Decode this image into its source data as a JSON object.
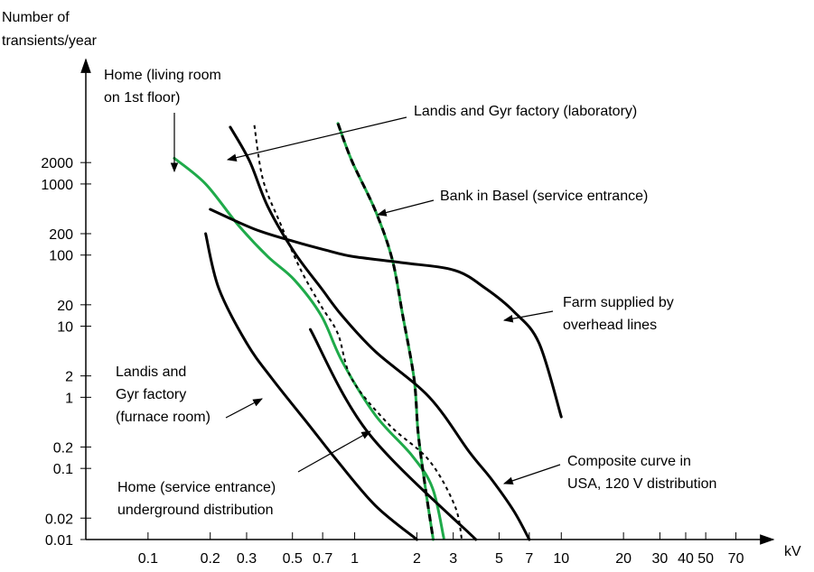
{
  "chart_data": {
    "type": "line",
    "y_label": [
      "Number of",
      "transients/year"
    ],
    "x_label": "kV",
    "xscale": "log",
    "yscale": "log",
    "xlim": [
      0.05,
      100
    ],
    "ylim": [
      0.01,
      50000
    ],
    "xticks": [
      0.1,
      0.2,
      0.3,
      0.5,
      0.7,
      1,
      2,
      3,
      5,
      7,
      10,
      20,
      30,
      40,
      50,
      70
    ],
    "yticks": [
      0.01,
      0.02,
      0.1,
      0.2,
      1,
      2,
      10,
      20,
      100,
      200,
      1000,
      2000
    ],
    "grid": false,
    "series": [
      {
        "color": "#1faa4a",
        "style": "solid",
        "x": [
          0.134,
          0.19,
          0.273,
          0.38,
          0.51,
          0.69,
          0.87,
          1.26,
          1.9,
          2.38,
          2.7
        ],
        "values": [
          2300,
          1000,
          265,
          95,
          45,
          14,
          3.2,
          0.56,
          0.15,
          0.053,
          0.0105
        ]
      },
      {
        "color": "#1faa4a",
        "style": "dashed",
        "x": [
          0.83,
          0.97,
          1.26,
          1.52,
          1.71,
          1.94,
          2.03,
          2.2,
          2.4
        ],
        "values": [
          7100,
          2100,
          420,
          87,
          14,
          1.8,
          0.31,
          0.053,
          0.01
        ]
      },
      {
        "color": "#000000",
        "style": "dotted",
        "x": [
          0.327,
          0.36,
          0.44,
          0.55,
          0.69,
          0.83,
          0.97,
          1.47,
          2.29,
          3.05,
          3.3
        ],
        "values": [
          6700,
          1150,
          265,
          61,
          19,
          7.8,
          1.8,
          0.41,
          0.13,
          0.03,
          0.01
        ]
      },
      {
        "color": "#000000",
        "style": "solid",
        "x": [
          0.25,
          0.31,
          0.38,
          0.51,
          0.69,
          0.87,
          1.26,
          2.3,
          3.59,
          4.6,
          5.9,
          7
        ],
        "values": [
          6300,
          2100,
          480,
          110,
          34,
          14,
          4.4,
          1,
          0.17,
          0.07,
          0.025,
          0.01
        ]
      },
      {
        "color": "#000000",
        "style": "solid",
        "x": [
          0.2,
          0.33,
          0.51,
          0.72,
          0.97,
          1.71,
          3.05,
          4.3,
          5.9,
          7.8,
          10
        ],
        "values": [
          440,
          230,
          155,
          118,
          96,
          78,
          61,
          34,
          16,
          5.8,
          0.53
        ]
      },
      {
        "color": "#000000",
        "style": "solid",
        "x": [
          0.19,
          0.22,
          0.3,
          0.4,
          0.6,
          0.82,
          1.26,
          2
        ],
        "values": [
          200,
          34,
          5.8,
          1.8,
          0.41,
          0.13,
          0.03,
          0.01
        ]
      },
      {
        "color": "#000000",
        "style": "solid",
        "x": [
          0.61,
          1.17,
          3.86
        ],
        "values": [
          9,
          0.31,
          0.01
        ]
      }
    ],
    "annotations": [
      {
        "text": [
          "Home (living room",
          "on 1st floor)"
        ]
      },
      {
        "text": [
          "Landis and Gyr factory (laboratory)"
        ]
      },
      {
        "text": [
          "Bank in Basel (service entrance)"
        ]
      },
      {
        "text": [
          "Farm supplied by",
          "overhead lines"
        ]
      },
      {
        "text": [
          "Landis and",
          "Gyr factory",
          "(furnace room)"
        ]
      },
      {
        "text": [
          "Home (service entrance)",
          "underground distribution"
        ]
      },
      {
        "text": [
          "Composite curve in",
          "USA, 120 V distribution"
        ]
      }
    ]
  }
}
